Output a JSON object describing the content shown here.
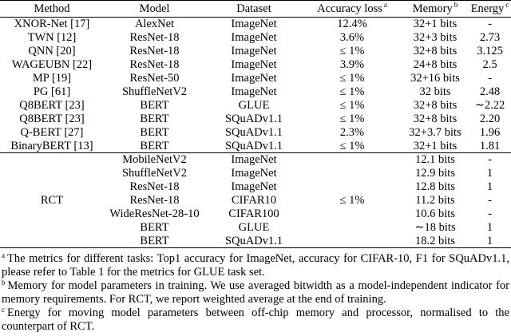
{
  "table": {
    "headers": [
      {
        "label": "Method",
        "mark": ""
      },
      {
        "label": "Model",
        "mark": ""
      },
      {
        "label": "Dataset",
        "mark": ""
      },
      {
        "label": "Accuracy loss",
        "mark": "a"
      },
      {
        "label": "Memory",
        "mark": "b"
      },
      {
        "label": "Energy",
        "mark": "c"
      }
    ],
    "rows": [
      [
        "XNOR-Net [17]",
        "AlexNet",
        "ImageNet",
        "12.4%",
        "32+1 bits",
        "-"
      ],
      [
        "TWN [12]",
        "ResNet-18",
        "ImageNet",
        "3.6%",
        "32+3 bits",
        "2.73"
      ],
      [
        "QNN [20]",
        "ResNet-18",
        "ImageNet",
        "≤ 1%",
        "32+8 bits",
        "3.125"
      ],
      [
        "WAGEUBN [22]",
        "ResNet-18",
        "ImageNet",
        "3.9%",
        "24+8 bits",
        "2.5"
      ],
      [
        "MP [19]",
        "ResNet-50",
        "ImageNet",
        "≤ 1%",
        "32+16 bits",
        "-"
      ],
      [
        "PG [61]",
        "ShuffleNetV2",
        "ImageNet",
        "≤ 1%",
        "32 bits",
        "2.48"
      ],
      [
        "Q8BERT [23]",
        "BERT",
        "GLUE",
        "≤ 1%",
        "32+8 bits",
        "∼2.22"
      ],
      [
        "Q8BERT [23]",
        "BERT",
        "SQuADv1.1",
        "≤ 1%",
        "32+8 bits",
        "2.20"
      ],
      [
        "Q-BERT [27]",
        "BERT",
        "SQuADv1.1",
        "2.3%",
        "32+3.7 bits",
        "1.96"
      ],
      [
        "BinaryBERT [13]",
        "BERT",
        "SQuADv1.1",
        "≤ 1%",
        "32+1 bits",
        "1.81"
      ]
    ],
    "rct": {
      "method": "RCT",
      "accuracy_loss": "≤ 1%",
      "rows": [
        [
          "MobileNetV2",
          "ImageNet",
          "12.1 bits",
          "-"
        ],
        [
          "ShuffleNetV2",
          "ImageNet",
          "12.9 bits",
          "1"
        ],
        [
          "ResNet-18",
          "ImageNet",
          "12.8 bits",
          "1"
        ],
        [
          "ResNet-18",
          "CIFAR10",
          "11.2 bits",
          "-"
        ],
        [
          "WideResNet-28-10",
          "CIFAR100",
          "10.6 bits",
          "-"
        ],
        [
          "BERT",
          "GLUE",
          "∼18 bits",
          "1"
        ],
        [
          "BERT",
          "SQuADv1.1",
          "18.2 bits",
          "1"
        ]
      ]
    }
  },
  "notes": [
    {
      "mark": "a",
      "text": "The metrics for different tasks: Top1 accuracy for ImageNet, accuracy for CIFAR-10, F1 for SQuADv1.1, please refer to Table 1 for the metrics for GLUE task set."
    },
    {
      "mark": "b",
      "text": "Memory for model parameters in training. We use averaged bitwidth as a model-independent indicator for memory requirements. For RCT, we report weighted average at the end of training."
    },
    {
      "mark": "c",
      "text": "Energy for moving model parameters between off-chip memory and processor, normalised to the counterpart of RCT."
    }
  ]
}
